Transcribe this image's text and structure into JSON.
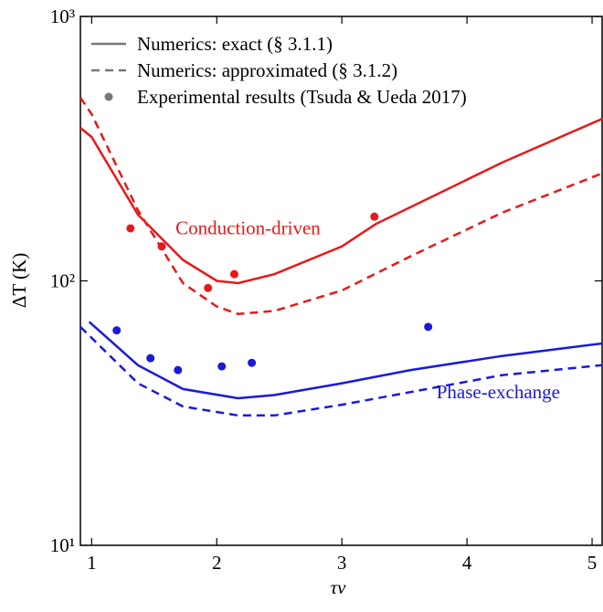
{
  "chart_data": {
    "type": "line",
    "xlabel": "τν",
    "ylabel": "ΔT (K)",
    "xlim": [
      0.91,
      5.08
    ],
    "xticks": [
      1,
      2,
      3,
      4,
      5
    ],
    "ylim": [
      10,
      1000
    ],
    "log_y": true,
    "yticks": [
      {
        "value": 10,
        "label": "10¹"
      },
      {
        "value": 100,
        "label": "10²"
      },
      {
        "value": 1000,
        "label": "10³"
      }
    ],
    "legend": "upper left",
    "legend_entries": [
      {
        "label": "Numerics: exact (§ 3.1.1)",
        "style": "solid"
      },
      {
        "label": "Numerics: approximated (§ 3.1.2)",
        "style": "dashed"
      },
      {
        "label": "Experimental results  (Tsuda & Ueda 2017)",
        "style": "points"
      }
    ],
    "annotations": [
      {
        "text": "Conduction-driven",
        "x": 2.25,
        "y": 150,
        "color": "#e8191a"
      },
      {
        "text": "Phase-exchange",
        "x": 4.25,
        "y": 36,
        "color": "#1a1adb"
      }
    ],
    "series": [
      {
        "style": "solid",
        "color": "#e8191a",
        "x": [
          0.91,
          1.0,
          1.37,
          1.73,
          2.0,
          2.17,
          2.46,
          3.0,
          3.27,
          4.28,
          5.08
        ],
        "values": [
          379,
          350,
          178,
          120,
          100,
          98,
          106,
          135,
          164,
          280,
          410
        ]
      },
      {
        "style": "dashed",
        "color": "#e8191a",
        "x": [
          0.91,
          1.0,
          1.37,
          1.73,
          2.0,
          2.17,
          2.46,
          3.0,
          3.55,
          4.28,
          5.08
        ],
        "values": [
          493,
          427,
          185,
          98,
          80,
          75,
          77,
          92,
          124,
          181,
          255
        ]
      },
      {
        "style": "solid",
        "color": "#1a1adb",
        "x": [
          0.98,
          1.37,
          1.73,
          2.17,
          2.46,
          3.0,
          3.55,
          4.28,
          5.08
        ],
        "values": [
          70,
          48,
          39,
          36,
          37,
          41,
          46,
          52,
          58
        ]
      },
      {
        "style": "dashed",
        "color": "#1a1adb",
        "x": [
          0.91,
          1.37,
          1.73,
          2.17,
          2.46,
          3.0,
          3.55,
          4.28,
          5.08
        ],
        "values": [
          67,
          41,
          33.5,
          31,
          31,
          34,
          38,
          44,
          48
        ]
      },
      {
        "style": "points",
        "color": "#e8191a",
        "x": [
          1.31,
          1.56,
          1.93,
          2.14,
          3.26
        ],
        "values": [
          158,
          135,
          94,
          106,
          175
        ]
      },
      {
        "style": "points",
        "color": "#1a1adb",
        "x": [
          1.2,
          1.47,
          1.69,
          2.04,
          2.28,
          3.69
        ],
        "values": [
          65,
          51,
          46,
          47.5,
          49,
          67
        ]
      }
    ]
  }
}
